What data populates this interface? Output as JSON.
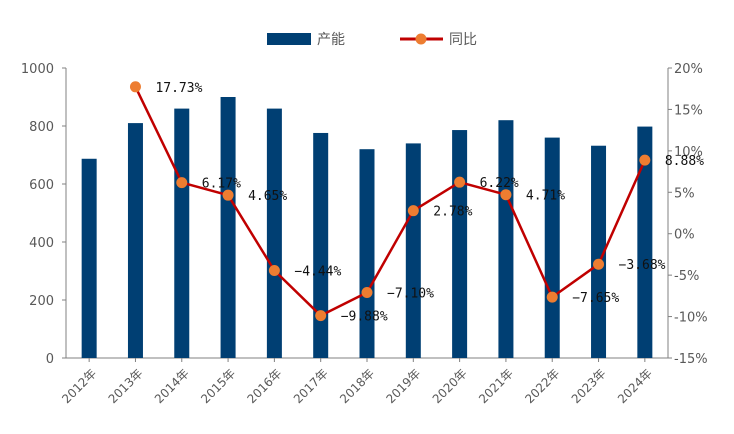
{
  "chart_data": {
    "type": "bar+line",
    "categories": [
      "2012年",
      "2013年",
      "2014年",
      "2015年",
      "2016年",
      "2017年",
      "2018年",
      "2019年",
      "2020年",
      "2021年",
      "2022年",
      "2023年",
      "2024年"
    ],
    "series": [
      {
        "name": "产能",
        "type": "bar",
        "axis": "left",
        "color": "#003f73",
        "values": [
          687,
          810,
          860,
          900,
          860,
          776,
          720,
          740,
          786,
          820,
          760,
          732,
          798
        ]
      },
      {
        "name": "同比",
        "type": "line",
        "axis": "right",
        "color": "#c00000",
        "marker_color": "#ed7d31",
        "values": [
          null,
          17.73,
          6.17,
          4.65,
          -4.44,
          -9.88,
          -7.1,
          2.78,
          6.22,
          4.71,
          -7.65,
          -3.68,
          8.88
        ],
        "labels": [
          "",
          "17.73%",
          "6.17%",
          "4.65%",
          "−4.44%",
          "−9.88%",
          "−7.10%",
          "2.78%",
          "6.22%",
          "4.71%",
          "−7.65%",
          "−3.68%",
          "8.88%"
        ]
      }
    ],
    "y_left": {
      "min": 0,
      "max": 1000,
      "ticks": [
        "0",
        "200",
        "400",
        "600",
        "800",
        "1000"
      ]
    },
    "y_right": {
      "min": -15,
      "max": 20,
      "ticks": [
        "-15%",
        "-10%",
        "-5%",
        "0%",
        "5%",
        "10%",
        "15%",
        "20%"
      ]
    },
    "legend": {
      "position": "top-center"
    },
    "grid": false
  }
}
